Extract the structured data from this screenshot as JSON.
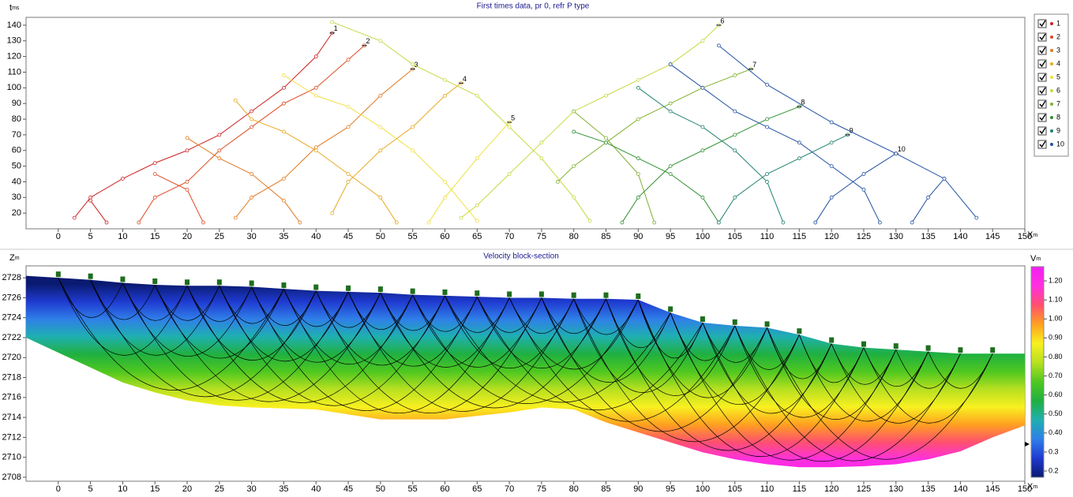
{
  "chart_data": [
    {
      "type": "line",
      "title": "First times data, pr 0, refr P type",
      "y_label": "t",
      "y_unit": "ms",
      "x_label": "X",
      "x_unit": "m",
      "xlim": [
        -5,
        150
      ],
      "xticks": [
        0,
        5,
        10,
        15,
        20,
        25,
        30,
        35,
        40,
        45,
        50,
        55,
        60,
        65,
        70,
        75,
        80,
        85,
        90,
        95,
        100,
        105,
        110,
        115,
        120,
        125,
        130,
        135,
        140,
        145,
        150
      ],
      "ylim": [
        10,
        145
      ],
      "yticks": [
        20,
        30,
        40,
        50,
        60,
        70,
        80,
        90,
        100,
        110,
        120,
        130,
        140
      ],
      "legend": "right",
      "series": [
        {
          "name": "1",
          "color": "#cc2222",
          "x": [
            2.5,
            5,
            10,
            15,
            20,
            25,
            30,
            35,
            40,
            42.5,
            null,
            5,
            7.5
          ],
          "values": [
            17,
            30,
            42,
            52,
            60,
            70,
            85,
            100,
            120,
            135,
            null,
            28,
            14
          ]
        },
        {
          "name": "2",
          "color": "#dd4a22",
          "x": [
            12.5,
            15,
            20,
            25,
            30,
            35,
            40,
            45,
            47.5,
            null,
            15,
            20,
            22.5
          ],
          "values": [
            14,
            30,
            40,
            60,
            75,
            90,
            100,
            118,
            127,
            null,
            45,
            35,
            14
          ]
        },
        {
          "name": "3",
          "color": "#e07a20",
          "x": [
            27.5,
            30,
            35,
            40,
            45,
            50,
            55,
            null,
            20,
            25,
            30,
            35,
            37.5
          ],
          "values": [
            17,
            30,
            42,
            62,
            75,
            95,
            112,
            null,
            68,
            55,
            45,
            28,
            14
          ]
        },
        {
          "name": "4",
          "color": "#e8a820",
          "x": [
            42.5,
            45,
            50,
            55,
            60,
            62.5,
            null,
            27.5,
            30,
            35,
            40,
            45,
            50,
            52.5
          ],
          "values": [
            20,
            40,
            60,
            75,
            95,
            103,
            null,
            92,
            80,
            72,
            60,
            45,
            30,
            14
          ]
        },
        {
          "name": "5",
          "color": "#f0e040",
          "x": [
            57.5,
            60,
            65,
            70,
            null,
            35,
            40,
            45,
            50,
            55,
            60,
            65
          ],
          "values": [
            14,
            30,
            55,
            78,
            null,
            108,
            95,
            88,
            75,
            60,
            40,
            15
          ]
        },
        {
          "name": "6",
          "color": "#c8d840",
          "x": [
            62.5,
            65,
            70,
            75,
            80,
            85,
            90,
            95,
            100,
            102.5,
            null,
            42.5,
            50,
            55,
            60,
            65,
            70,
            75,
            80,
            82.5
          ],
          "values": [
            17,
            25,
            45,
            65,
            85,
            95,
            105,
            115,
            130,
            140,
            null,
            142,
            130,
            115,
            105,
            95,
            75,
            55,
            30,
            15
          ]
        },
        {
          "name": "7",
          "color": "#80b030",
          "x": [
            77.5,
            80,
            85,
            90,
            95,
            100,
            105,
            107.5,
            null,
            80,
            85,
            90,
            92.5
          ],
          "values": [
            40,
            50,
            65,
            80,
            90,
            100,
            108,
            112,
            null,
            85,
            68,
            45,
            14
          ]
        },
        {
          "name": "8",
          "color": "#309030",
          "x": [
            87.5,
            90,
            95,
            100,
            105,
            110,
            115,
            null,
            80,
            85,
            90,
            95,
            100,
            102.5
          ],
          "values": [
            14,
            30,
            50,
            60,
            70,
            80,
            88,
            null,
            72,
            65,
            55,
            45,
            30,
            14
          ]
        },
        {
          "name": "9",
          "color": "#208070",
          "x": [
            102.5,
            105,
            110,
            115,
            120,
            122.5,
            null,
            90,
            95,
            100,
            105,
            110,
            112.5
          ],
          "values": [
            14,
            30,
            45,
            55,
            65,
            70,
            null,
            100,
            85,
            75,
            60,
            40,
            14
          ]
        },
        {
          "name": "10",
          "color": "#2050a0",
          "x": [
            117.5,
            120,
            125,
            130,
            null,
            95,
            100,
            105,
            110,
            115,
            120,
            125,
            127.5,
            null,
            102.5,
            110,
            120,
            130,
            137.5,
            142.5,
            null,
            132.5,
            135,
            137.5
          ],
          "values": [
            14,
            30,
            45,
            58,
            null,
            115,
            100,
            85,
            75,
            65,
            50,
            35,
            14,
            null,
            127,
            102,
            78,
            58,
            42,
            17,
            null,
            14,
            30,
            42
          ]
        }
      ]
    },
    {
      "type": "section",
      "title": "Velocity block-section",
      "y_label": "Z",
      "y_unit": "m",
      "x_label": "X",
      "x_unit": "m",
      "xlim": [
        -5,
        150
      ],
      "xticks": [
        0,
        5,
        10,
        15,
        20,
        25,
        30,
        35,
        40,
        45,
        50,
        55,
        60,
        65,
        70,
        75,
        80,
        85,
        90,
        95,
        100,
        105,
        110,
        115,
        120,
        125,
        130,
        135,
        140,
        145,
        150
      ],
      "ylim": [
        2707.6,
        2729.2
      ],
      "yticks": [
        2708,
        2710,
        2712,
        2714,
        2716,
        2718,
        2720,
        2722,
        2724,
        2726,
        2728
      ],
      "surface": {
        "x": [
          -5,
          0,
          5,
          10,
          15,
          20,
          25,
          30,
          35,
          40,
          45,
          50,
          55,
          60,
          65,
          70,
          75,
          80,
          85,
          90,
          95,
          100,
          105,
          110,
          115,
          120,
          125,
          130,
          135,
          140,
          145,
          150
        ],
        "z": [
          2728.2,
          2728,
          2727.8,
          2727.5,
          2727.3,
          2727.2,
          2727.2,
          2727.1,
          2726.9,
          2726.7,
          2726.6,
          2726.5,
          2726.3,
          2726.2,
          2726.1,
          2726,
          2726,
          2725.9,
          2725.9,
          2725.8,
          2724.5,
          2723.5,
          2723.2,
          2723,
          2722.3,
          2721.4,
          2721,
          2720.8,
          2720.6,
          2720.4,
          2720.4,
          2720.4
        ]
      },
      "bottom": {
        "x": [
          -5,
          0,
          5,
          10,
          15,
          20,
          25,
          30,
          40,
          50,
          60,
          70,
          75,
          80,
          85,
          90,
          95,
          100,
          105,
          110,
          115,
          120,
          125,
          130,
          135,
          140,
          145,
          150
        ],
        "z": [
          2722,
          2720.5,
          2719,
          2717.5,
          2716.5,
          2715.7,
          2715.2,
          2715,
          2714.8,
          2713.8,
          2713.8,
          2714.5,
          2715,
          2714.8,
          2713.5,
          2712.5,
          2711.5,
          2710.5,
          2709.8,
          2709.3,
          2709,
          2709,
          2709.1,
          2709.3,
          2709.8,
          2710.6,
          2712,
          2713.2
        ]
      },
      "receivers": [
        0,
        5,
        10,
        15,
        20,
        25,
        30,
        35,
        40,
        45,
        50,
        55,
        60,
        65,
        70,
        75,
        80,
        85,
        90,
        95,
        100,
        105,
        110,
        115,
        120,
        125,
        130,
        135,
        140,
        145
      ],
      "receiver_color": "#1e6e1e",
      "colorbar": {
        "label": "V",
        "unit": "m",
        "lim": [
          0.167,
          1.275
        ],
        "ticks": [
          0.2,
          0.3,
          {
            "value": 0.4,
            "label": "0.40"
          },
          {
            "value": 0.5,
            "label": "0.50"
          },
          {
            "value": 0.6,
            "label": "0.60"
          },
          {
            "value": 0.7,
            "label": "0.70"
          },
          {
            "value": 0.8,
            "label": "0.80"
          },
          {
            "value": 0.9,
            "label": "0.90"
          },
          {
            "value": 1.0,
            "label": "1.00"
          },
          {
            "value": 1.1,
            "label": "1.10"
          },
          {
            "value": 1.2,
            "label": "1.20"
          }
        ],
        "colors": [
          "#0a1a70",
          "#1f3ad0",
          "#2f7fe8",
          "#1fb0b0",
          "#20b040",
          "#50c820",
          "#b8e020",
          "#f8f020",
          "#ffa020",
          "#ff5070",
          "#ff30e0",
          "#f020f0"
        ]
      }
    }
  ]
}
